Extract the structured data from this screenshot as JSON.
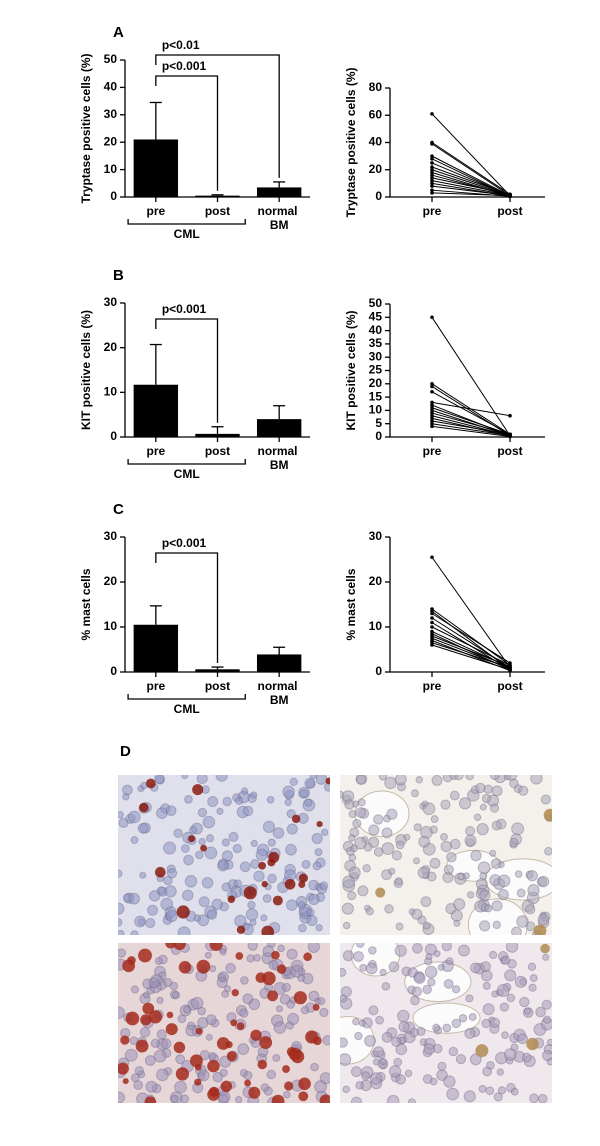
{
  "chart_data": [
    {
      "type": "bar",
      "panel": "A",
      "y_label": "Tryptase positive cells (%)",
      "categories": [
        "pre",
        "post",
        "normal BM"
      ],
      "values": [
        21,
        0.5,
        3.5
      ],
      "errors": [
        13.5,
        0.3,
        2
      ],
      "color": "#000000",
      "ylim": [
        0,
        50
      ],
      "yticks": [
        0,
        10,
        20,
        30,
        40,
        50
      ],
      "annotations": [
        {
          "text": "p<0.001",
          "categories": [
            "pre",
            "post"
          ]
        },
        {
          "text": "p<0.01",
          "categories": [
            "pre",
            "normal BM"
          ]
        }
      ],
      "groups": [
        {
          "text": "CML",
          "categories": [
            "pre",
            "post"
          ]
        }
      ]
    },
    {
      "type": "paired",
      "y_label": "Tryptase positive cells (%)",
      "categories": [
        "pre",
        "post"
      ],
      "ylim": [
        0,
        80
      ],
      "yticks": [
        0,
        20,
        40,
        60,
        80
      ],
      "series": [
        {
          "color": "#000000",
          "values": [
            61,
            1
          ]
        },
        {
          "color": "#000000",
          "values": [
            40,
            2
          ]
        },
        {
          "color": "#000000",
          "values": [
            39,
            1
          ]
        },
        {
          "color": "#000000",
          "values": [
            30,
            1
          ]
        },
        {
          "color": "#000000",
          "values": [
            28,
            0.5
          ]
        },
        {
          "color": "#000000",
          "values": [
            25,
            1
          ]
        },
        {
          "color": "#000000",
          "values": [
            22,
            1.5
          ]
        },
        {
          "color": "#000000",
          "values": [
            20,
            1
          ]
        },
        {
          "color": "#000000",
          "values": [
            18,
            0.5
          ]
        },
        {
          "color": "#000000",
          "values": [
            16,
            1
          ]
        },
        {
          "color": "#000000",
          "values": [
            14,
            2
          ]
        },
        {
          "color": "#000000",
          "values": [
            12,
            1
          ]
        },
        {
          "color": "#000000",
          "values": [
            10,
            0.5
          ]
        },
        {
          "color": "#000000",
          "values": [
            8,
            1
          ]
        },
        {
          "color": "#000000",
          "values": [
            5,
            0.5
          ]
        },
        {
          "color": "#000000",
          "values": [
            3,
            1
          ]
        }
      ]
    },
    {
      "type": "bar",
      "panel": "B",
      "y_label": "KIT positive cells (%)",
      "categories": [
        "pre",
        "post",
        "normal BM"
      ],
      "values": [
        11.7,
        0.7,
        4
      ],
      "errors": [
        9,
        1.6,
        3
      ],
      "color": "#000000",
      "ylim": [
        0,
        30
      ],
      "yticks": [
        0,
        10,
        20,
        30
      ],
      "annotations": [
        {
          "text": "p<0.001",
          "categories": [
            "pre",
            "post"
          ]
        }
      ],
      "groups": [
        {
          "text": "CML",
          "categories": [
            "pre",
            "post"
          ]
        }
      ]
    },
    {
      "type": "paired",
      "y_label": "KIT positive cells (%)",
      "categories": [
        "pre",
        "post"
      ],
      "ylim": [
        0,
        50
      ],
      "yticks": [
        0,
        5,
        10,
        15,
        20,
        25,
        30,
        35,
        40,
        45,
        50
      ],
      "series": [
        {
          "color": "#000000",
          "values": [
            45,
            0.5
          ]
        },
        {
          "color": "#000000",
          "values": [
            20,
            1
          ]
        },
        {
          "color": "#000000",
          "values": [
            19,
            0.5
          ]
        },
        {
          "color": "#000000",
          "values": [
            17,
            1
          ]
        },
        {
          "color": "#000000",
          "values": [
            13,
            8
          ]
        },
        {
          "color": "#000000",
          "values": [
            12,
            0.5
          ]
        },
        {
          "color": "#000000",
          "values": [
            11,
            1
          ]
        },
        {
          "color": "#000000",
          "values": [
            10,
            0.5
          ]
        },
        {
          "color": "#000000",
          "values": [
            9,
            1
          ]
        },
        {
          "color": "#000000",
          "values": [
            8,
            0.5
          ]
        },
        {
          "color": "#000000",
          "values": [
            7,
            0.3
          ]
        },
        {
          "color": "#000000",
          "values": [
            6,
            1
          ]
        },
        {
          "color": "#000000",
          "values": [
            5,
            0.5
          ]
        },
        {
          "color": "#000000",
          "values": [
            4,
            0.2
          ]
        }
      ]
    },
    {
      "type": "bar",
      "panel": "C",
      "y_label": "% mast cells",
      "categories": [
        "pre",
        "post",
        "normal BM"
      ],
      "values": [
        10.5,
        0.6,
        3.9
      ],
      "errors": [
        4.2,
        0.5,
        1.6
      ],
      "color": "#000000",
      "ylim": [
        0,
        30
      ],
      "yticks": [
        0,
        10,
        20,
        30
      ],
      "annotations": [
        {
          "text": "p<0.001",
          "categories": [
            "pre",
            "post"
          ]
        }
      ],
      "groups": [
        {
          "text": "CML",
          "categories": [
            "pre",
            "post"
          ]
        }
      ]
    },
    {
      "type": "paired",
      "y_label": "% mast cells",
      "categories": [
        "pre",
        "post"
      ],
      "ylim": [
        0,
        30
      ],
      "yticks": [
        0,
        10,
        20,
        30
      ],
      "series": [
        {
          "color": "#000000",
          "values": [
            25.5,
            1
          ]
        },
        {
          "color": "#000000",
          "values": [
            14,
            1.5
          ]
        },
        {
          "color": "#000000",
          "values": [
            13.5,
            0.5
          ]
        },
        {
          "color": "#000000",
          "values": [
            13,
            2
          ]
        },
        {
          "color": "#000000",
          "values": [
            12,
            1
          ]
        },
        {
          "color": "#000000",
          "values": [
            11,
            0.5
          ]
        },
        {
          "color": "#000000",
          "values": [
            10,
            1.5
          ]
        },
        {
          "color": "#000000",
          "values": [
            9,
            1
          ]
        },
        {
          "color": "#000000",
          "values": [
            8.5,
            0.5
          ]
        },
        {
          "color": "#000000",
          "values": [
            8,
            1.2
          ]
        },
        {
          "color": "#000000",
          "values": [
            7.5,
            0.8
          ]
        },
        {
          "color": "#000000",
          "values": [
            7,
            0.3
          ]
        },
        {
          "color": "#000000",
          "values": [
            6.5,
            1
          ]
        },
        {
          "color": "#000000",
          "values": [
            6,
            0.5
          ]
        }
      ]
    }
  ],
  "images": {
    "panel": "D"
  }
}
